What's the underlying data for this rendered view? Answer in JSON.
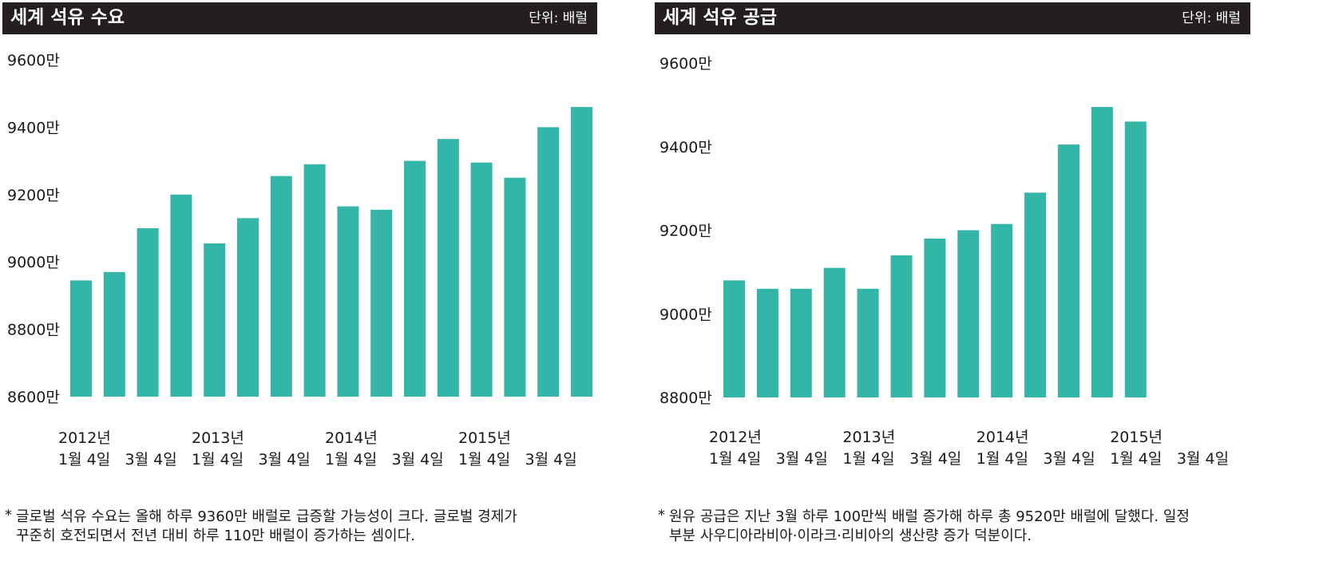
{
  "chart_data": [
    {
      "type": "bar",
      "title": "세계 석유 수요",
      "unit": "단위: 배럴",
      "y_ticks": [
        "9600만",
        "9400만",
        "9200만",
        "9000만",
        "8800만",
        "8600만"
      ],
      "ylim": [
        8600,
        9600
      ],
      "x_tick_labels": [
        {
          "year": "2012년",
          "month": "1월 4일"
        },
        {
          "year": "",
          "month": "3월 4일"
        },
        {
          "year": "2013년",
          "month": "1월 4일"
        },
        {
          "year": "",
          "month": "3월 4일"
        },
        {
          "year": "2014년",
          "month": "1월 4일"
        },
        {
          "year": "",
          "month": "3월 4일"
        },
        {
          "year": "2015년",
          "month": "1월 4일"
        },
        {
          "year": "",
          "month": "3월 4일"
        }
      ],
      "values": [
        8945,
        8970,
        9100,
        9200,
        9055,
        9130,
        9255,
        9290,
        9165,
        9155,
        9300,
        9365,
        9295,
        9250,
        9400,
        9460
      ],
      "bar_color": "#33b5a8",
      "footnote": [
        "글로벌 석유 수요는 올해 하루 9360만 배럴로 급증할 가능성이 크다. 글로벌 경제가",
        "꾸준히 호전되면서 전년 대비 하루 110만 배럴이 증가하는 셈이다."
      ]
    },
    {
      "type": "bar",
      "title": "세계 석유 공급",
      "unit": "단위: 배럴",
      "y_ticks": [
        "9600만",
        "9400만",
        "9200만",
        "9000만",
        "8800만"
      ],
      "ylim": [
        8800,
        9600
      ],
      "x_tick_labels": [
        {
          "year": "2012년",
          "month": "1월 4일"
        },
        {
          "year": "",
          "month": "3월 4일"
        },
        {
          "year": "2013년",
          "month": "1월 4일"
        },
        {
          "year": "",
          "month": "3월 4일"
        },
        {
          "year": "2014년",
          "month": "1월 4일"
        },
        {
          "year": "",
          "month": "3월 4일"
        },
        {
          "year": "2015년",
          "month": "1월 4일"
        },
        {
          "year": "",
          "month": "3월 4일"
        }
      ],
      "values": [
        9080,
        9060,
        9060,
        9110,
        9060,
        9140,
        9180,
        9200,
        9215,
        9290,
        9405,
        9495,
        9460
      ],
      "bar_color": "#33b5a8",
      "footnote": [
        "원유 공급은 지난 3월 하루 100만씩 배럴 증가해 하루 총 9520만 배럴에 달했다. 일정",
        "부분 사우디아라비아·이라크·리비아의 생산량 증가 덕분이다."
      ]
    }
  ]
}
